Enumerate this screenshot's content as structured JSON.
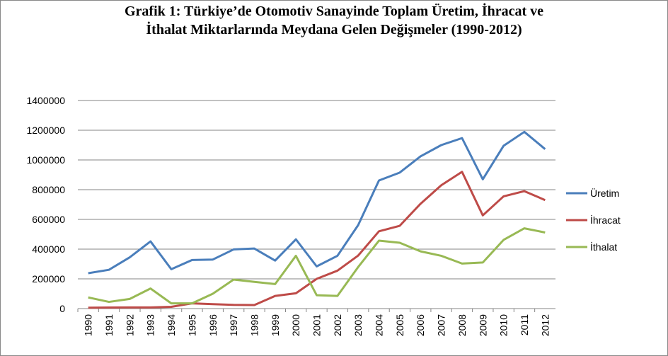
{
  "chart_data": {
    "type": "line",
    "title": [
      "Grafik 1: Türkiye’de Otomotiv Sanayinde Toplam Üretim, İhracat ve",
      "İthalat Miktarlarında Meydana Gelen Değişmeler (1990-2012)"
    ],
    "categories": [
      "1990",
      "1991",
      "1992",
      "1993",
      "1994",
      "1995",
      "1996",
      "1997",
      "1998",
      "1999",
      "2000",
      "2001",
      "2002",
      "2003",
      "2004",
      "2005",
      "2006",
      "2007",
      "2008",
      "2009",
      "2010",
      "2011",
      "2012"
    ],
    "series": [
      {
        "name": "Üretim",
        "color": "#4a7ebb",
        "values": [
          238000,
          261000,
          345000,
          452000,
          265000,
          327000,
          330000,
          398000,
          404000,
          323000,
          466000,
          284000,
          355000,
          562000,
          862000,
          915000,
          1024000,
          1100000,
          1147000,
          870000,
          1095000,
          1189000,
          1073000
        ]
      },
      {
        "name": "İhracat",
        "color": "#be4b48",
        "values": [
          6000,
          7000,
          8000,
          8000,
          12000,
          35000,
          30000,
          25000,
          24000,
          85000,
          103000,
          200000,
          255000,
          357000,
          520000,
          557000,
          705000,
          830000,
          920000,
          627000,
          755000,
          790000,
          730000
        ]
      },
      {
        "name": "İthalat",
        "color": "#98b954",
        "values": [
          75000,
          45000,
          65000,
          135000,
          35000,
          35000,
          100000,
          195000,
          180000,
          165000,
          355000,
          90000,
          85000,
          280000,
          457000,
          443000,
          385000,
          355000,
          303000,
          310000,
          462000,
          540000,
          512000
        ]
      }
    ],
    "ylim": [
      0,
      1400000
    ],
    "yticks": [
      0,
      200000,
      400000,
      600000,
      800000,
      1000000,
      1200000,
      1400000
    ],
    "grid": true,
    "legend": "right"
  }
}
